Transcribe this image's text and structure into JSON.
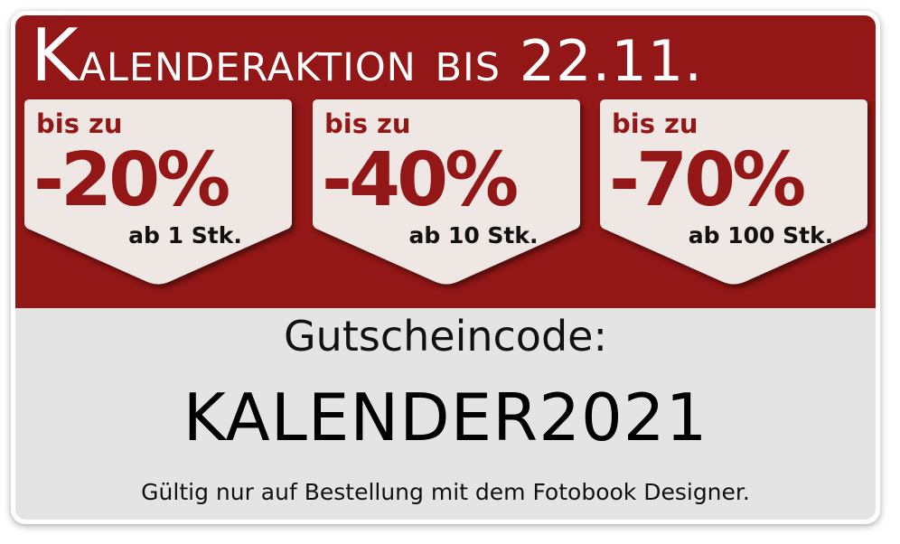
{
  "banner": {
    "title_initial": "K",
    "title_rest": "alenderaktion bis 22.11.",
    "badges": [
      {
        "upto": "bis zu",
        "discount": "-20%",
        "minimum": "ab 1 Stk."
      },
      {
        "upto": "bis zu",
        "discount": "-40%",
        "minimum": "ab 10 Stk."
      },
      {
        "upto": "bis zu",
        "discount": "-70%",
        "minimum": "ab 100 Stk."
      }
    ],
    "voucher_label": "Gutscheincode:",
    "voucher_code": "KALENDER2021",
    "validity_note": "Gültig nur auf Bestellung mit dem Fotobook Designer."
  },
  "colors": {
    "accent_red": "#921716",
    "badge_bg": "#eee7e3",
    "footer_bg": "#e4e4e4"
  }
}
